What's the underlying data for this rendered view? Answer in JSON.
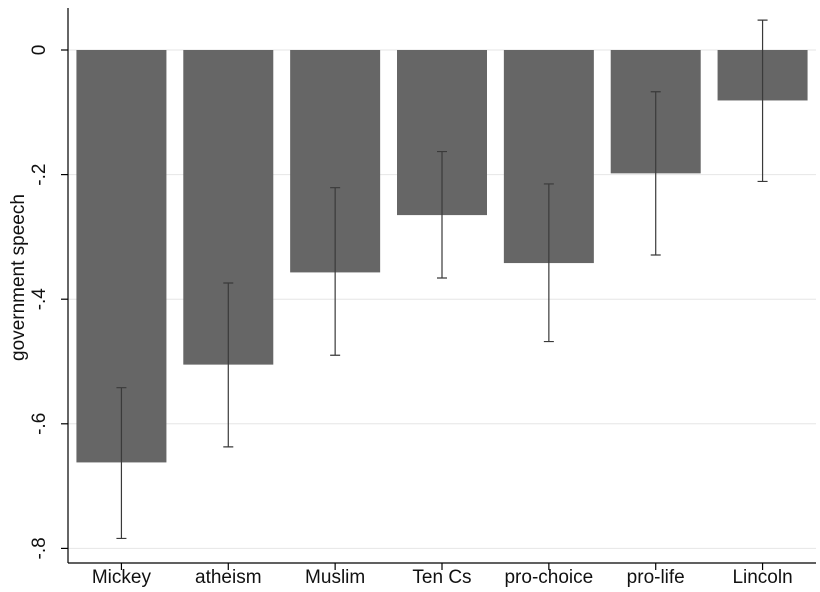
{
  "chart_data": {
    "type": "bar",
    "ylabel": "government speech",
    "xlabel": "",
    "ylim": [
      -0.8,
      0.05
    ],
    "yticks": [
      {
        "value": 0,
        "label": "0"
      },
      {
        "value": -0.2,
        "label": "-.2"
      },
      {
        "value": -0.4,
        "label": "-.4"
      },
      {
        "value": -0.6,
        "label": "-.6"
      },
      {
        "value": -0.8,
        "label": "-.8"
      }
    ],
    "grid": true,
    "categories": [
      "Mickey",
      "atheism",
      "Muslim",
      "Ten Cs",
      "pro-choice",
      "pro-life",
      "Lincoln"
    ],
    "values": [
      -0.662,
      -0.505,
      -0.357,
      -0.265,
      -0.342,
      -0.198,
      -0.081
    ],
    "error_low": [
      -0.784,
      -0.637,
      -0.49,
      -0.366,
      -0.468,
      -0.329,
      -0.211
    ],
    "error_high": [
      -0.542,
      -0.374,
      -0.221,
      -0.163,
      -0.215,
      -0.067,
      0.048
    ],
    "colors": {
      "bar": "#666666",
      "error_bar": "#3a3a3a",
      "grid": "#e6e6e6"
    }
  }
}
